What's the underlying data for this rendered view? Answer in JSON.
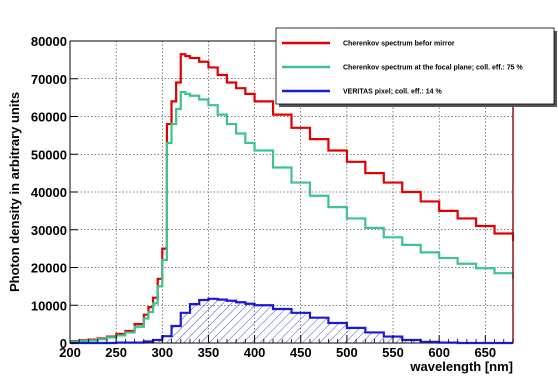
{
  "chart_data": {
    "type": "line",
    "title": "",
    "xlabel": "wavelength [nm]",
    "ylabel": "Photon density in arbitrary units",
    "xlim": [
      200,
      680
    ],
    "ylim": [
      0,
      80000
    ],
    "x_ticks": [
      200,
      250,
      300,
      350,
      400,
      450,
      500,
      550,
      600,
      650
    ],
    "y_ticks": [
      0,
      10000,
      20000,
      30000,
      40000,
      50000,
      60000,
      70000,
      80000
    ],
    "grid": true,
    "legend_position": "top-right",
    "colors": {
      "red": "#e00000",
      "teal": "#3cc48c",
      "blue": "#1a1ad6"
    },
    "series": [
      {
        "name": "Cherenkov spectrum befor mirror",
        "color": "#e00000",
        "x": [
          200,
          210,
          220,
          230,
          240,
          250,
          260,
          270,
          280,
          285,
          290,
          295,
          300,
          305,
          310,
          315,
          320,
          325,
          330,
          340,
          350,
          360,
          370,
          380,
          390,
          400,
          420,
          440,
          460,
          480,
          500,
          520,
          540,
          560,
          580,
          600,
          620,
          640,
          660,
          680
        ],
        "y": [
          500,
          700,
          900,
          1200,
          1700,
          2400,
          3200,
          5000,
          7500,
          9500,
          12000,
          17000,
          25000,
          58000,
          64000,
          69000,
          76500,
          76000,
          75500,
          74500,
          73000,
          71000,
          69000,
          67500,
          66000,
          64000,
          60500,
          57000,
          54000,
          51000,
          48000,
          45000,
          42500,
          40000,
          37500,
          35000,
          33000,
          31000,
          29000,
          27000
        ]
      },
      {
        "name": "Cherenkov spectrum at the focal plane; coll. eff.: 75 %",
        "color": "#3cc48c",
        "x": [
          200,
          210,
          220,
          230,
          240,
          250,
          260,
          270,
          280,
          285,
          290,
          295,
          300,
          305,
          310,
          315,
          320,
          325,
          330,
          340,
          350,
          360,
          370,
          380,
          390,
          400,
          420,
          440,
          460,
          480,
          500,
          520,
          540,
          560,
          580,
          600,
          620,
          640,
          660,
          680
        ],
        "y": [
          400,
          500,
          700,
          1000,
          1500,
          2000,
          2800,
          4300,
          6500,
          8200,
          10500,
          15000,
          22000,
          53000,
          58000,
          62000,
          66500,
          66000,
          65500,
          64500,
          63000,
          60500,
          58000,
          55500,
          53000,
          51000,
          46500,
          42500,
          39000,
          36000,
          33000,
          30500,
          28000,
          26000,
          24000,
          22500,
          21000,
          19800,
          18500,
          17000
        ]
      },
      {
        "name": "VERITAS pixel; coll. eff.: 14 %",
        "color": "#1a1ad6",
        "x": [
          200,
          250,
          280,
          290,
          300,
          310,
          320,
          330,
          340,
          350,
          360,
          370,
          380,
          390,
          400,
          420,
          440,
          460,
          480,
          500,
          520,
          540,
          560,
          580,
          600,
          620,
          640,
          660,
          680
        ],
        "y": [
          0,
          100,
          400,
          800,
          1800,
          4500,
          8000,
          10300,
          11400,
          11700,
          11500,
          11200,
          10800,
          10400,
          10000,
          9000,
          8000,
          6700,
          5300,
          4000,
          2800,
          1700,
          800,
          300,
          100,
          0,
          0,
          0,
          0
        ]
      }
    ]
  }
}
